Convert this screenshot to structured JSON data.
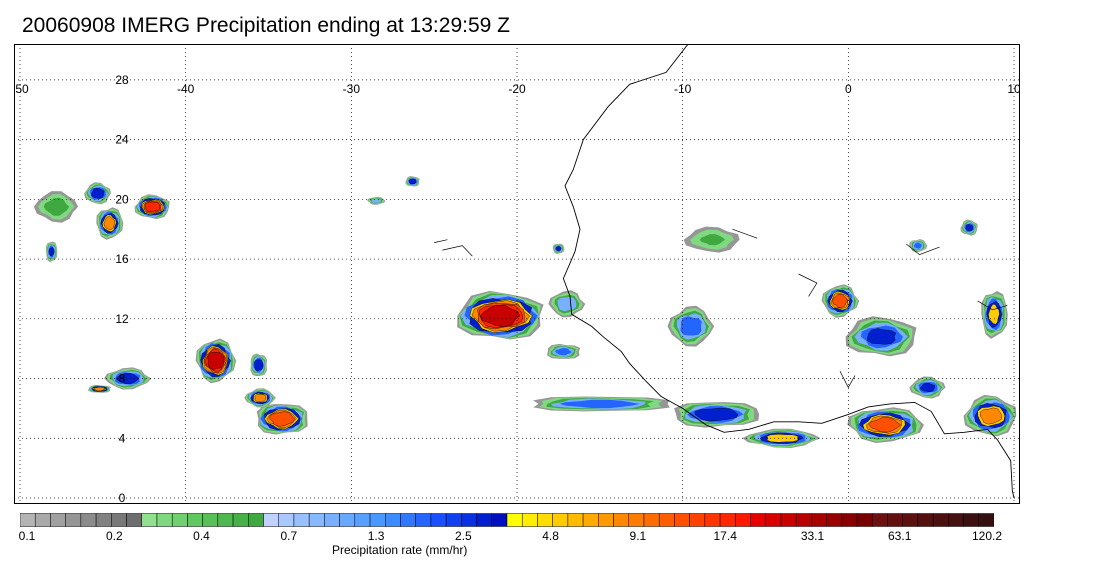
{
  "title": "20060908 IMERG Precipitation ending at 13:29:59 Z",
  "map": {
    "lon_range": [
      -50,
      10
    ],
    "lat_range": [
      0,
      30
    ],
    "lon_ticks": [
      "-50",
      "-40",
      "-30",
      "-20",
      "-10",
      "0",
      "10"
    ],
    "lat_ticks": [
      "0",
      "4",
      "8",
      "12",
      "16",
      "20",
      "24",
      "28"
    ],
    "grid": true,
    "coastline_color": "#000000"
  },
  "colorbar": {
    "title": "Precipitation rate (mm/hr)",
    "labels": [
      "0.1",
      "0.2",
      "0.4",
      "0.7",
      "1.3",
      "2.5",
      "4.8",
      "9.1",
      "17.4",
      "33.1",
      "63.1",
      "120.2"
    ],
    "colors": [
      "#b4b4b4",
      "#aaaaaa",
      "#a0a0a0",
      "#969696",
      "#8c8c8c",
      "#828282",
      "#787878",
      "#6e6e6e",
      "#90e090",
      "#80d880",
      "#70d070",
      "#60c860",
      "#58c058",
      "#50b850",
      "#48b048",
      "#40a840",
      "#c0d0ff",
      "#a8c8ff",
      "#98c0ff",
      "#88b8ff",
      "#78b0ff",
      "#68a8ff",
      "#58a0ff",
      "#4898ff",
      "#3c8cff",
      "#3078ff",
      "#2464ff",
      "#1850ff",
      "#1040f0",
      "#0830e0",
      "#0020d0",
      "#0010c0",
      "#ffff00",
      "#ffee00",
      "#ffdd00",
      "#ffcc00",
      "#ffbb00",
      "#ffaa00",
      "#ff9900",
      "#ff8800",
      "#ff7a00",
      "#ff6c00",
      "#ff5e00",
      "#ff5000",
      "#ff4200",
      "#ff3400",
      "#ff2600",
      "#ff1800",
      "#e80000",
      "#d80000",
      "#c80000",
      "#b80000",
      "#a80000",
      "#980000",
      "#880000",
      "#780000",
      "#6c1010",
      "#641010",
      "#5c1010",
      "#541010",
      "#4c1010",
      "#441010",
      "#3c1010",
      "#341010"
    ]
  },
  "rain_cells": [
    {
      "lon": -21,
      "lat": 12.2,
      "rx": 3.0,
      "ry": 1.8,
      "peak_mmhr": 30
    },
    {
      "lon": -38.2,
      "lat": 9.2,
      "rx": 1.3,
      "ry": 1.6,
      "peak_mmhr": 30
    },
    {
      "lon": -42,
      "lat": 19.5,
      "rx": 1.2,
      "ry": 0.9,
      "peak_mmhr": 20
    },
    {
      "lon": -44.6,
      "lat": 18.4,
      "rx": 0.9,
      "ry": 1.2,
      "peak_mmhr": 8
    },
    {
      "lon": -45.3,
      "lat": 20.4,
      "rx": 0.9,
      "ry": 0.8,
      "peak_mmhr": 4
    },
    {
      "lon": -48.1,
      "lat": 16.5,
      "rx": 0.4,
      "ry": 0.8,
      "peak_mmhr": 3
    },
    {
      "lon": -47.8,
      "lat": 19.5,
      "rx": 1.5,
      "ry": 1.2,
      "peak_mmhr": 0.8
    },
    {
      "lon": -34.2,
      "lat": 5.3,
      "rx": 1.8,
      "ry": 1.2,
      "peak_mmhr": 15
    },
    {
      "lon": -35.5,
      "lat": 6.7,
      "rx": 1.0,
      "ry": 0.7,
      "peak_mmhr": 8
    },
    {
      "lon": -35.6,
      "lat": 8.9,
      "rx": 0.6,
      "ry": 0.9,
      "peak_mmhr": 4
    },
    {
      "lon": -43.5,
      "lat": 8.0,
      "rx": 1.5,
      "ry": 0.8,
      "peak_mmhr": 4
    },
    {
      "lon": -45.2,
      "lat": 7.3,
      "rx": 0.8,
      "ry": 0.3,
      "peak_mmhr": 10
    },
    {
      "lon": -0.5,
      "lat": 13.2,
      "rx": 1.2,
      "ry": 1.2,
      "peak_mmhr": 12
    },
    {
      "lon": 2.0,
      "lat": 10.8,
      "rx": 2.5,
      "ry": 1.5,
      "peak_mmhr": 3
    },
    {
      "lon": 2.2,
      "lat": 4.9,
      "rx": 2.5,
      "ry": 1.3,
      "peak_mmhr": 12
    },
    {
      "lon": 8.6,
      "lat": 5.5,
      "rx": 1.8,
      "ry": 1.5,
      "peak_mmhr": 8
    },
    {
      "lon": 8.8,
      "lat": 12.3,
      "rx": 0.9,
      "ry": 1.8,
      "peak_mmhr": 5
    },
    {
      "lon": 4.8,
      "lat": 7.4,
      "rx": 1.2,
      "ry": 0.8,
      "peak_mmhr": 3
    },
    {
      "lon": -8.0,
      "lat": 5.6,
      "rx": 3.0,
      "ry": 1.0,
      "peak_mmhr": 4
    },
    {
      "lon": -4.0,
      "lat": 4.0,
      "rx": 2.5,
      "ry": 0.7,
      "peak_mmhr": 6
    },
    {
      "lon": -15.0,
      "lat": 6.3,
      "rx": 5.0,
      "ry": 0.6,
      "peak_mmhr": 2.5
    },
    {
      "lon": -9.5,
      "lat": 11.5,
      "rx": 1.5,
      "ry": 1.5,
      "peak_mmhr": 2.5
    },
    {
      "lon": -17.2,
      "lat": 9.8,
      "rx": 1.2,
      "ry": 0.6,
      "peak_mmhr": 2
    },
    {
      "lon": -17.0,
      "lat": 13.0,
      "rx": 1.2,
      "ry": 1.0,
      "peak_mmhr": 1.5
    },
    {
      "lon": -26.3,
      "lat": 21.2,
      "rx": 0.5,
      "ry": 0.4,
      "peak_mmhr": 4
    },
    {
      "lon": -28.5,
      "lat": 19.9,
      "rx": 0.6,
      "ry": 0.3,
      "peak_mmhr": 1.5
    },
    {
      "lon": 7.3,
      "lat": 18.1,
      "rx": 0.6,
      "ry": 0.6,
      "peak_mmhr": 3
    },
    {
      "lon": 4.2,
      "lat": 16.9,
      "rx": 0.6,
      "ry": 0.5,
      "peak_mmhr": 2
    },
    {
      "lon": -8.2,
      "lat": 17.3,
      "rx": 2.0,
      "ry": 1.0,
      "peak_mmhr": 0.6
    },
    {
      "lon": -17.5,
      "lat": 16.7,
      "rx": 0.4,
      "ry": 0.4,
      "peak_mmhr": 3
    }
  ]
}
